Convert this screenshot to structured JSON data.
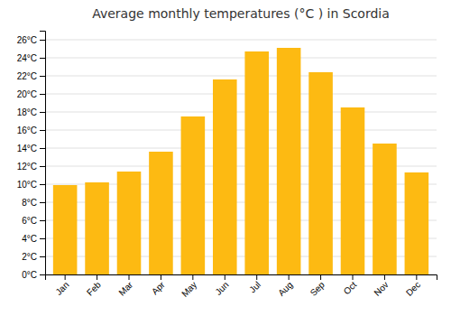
{
  "chart_data": {
    "type": "bar",
    "title": "Average monthly temperatures (°C ) in Scordia",
    "categories": [
      "Jan",
      "Feb",
      "Mar",
      "Apr",
      "May",
      "Jun",
      "Jul",
      "Aug",
      "Sep",
      "Oct",
      "Nov",
      "Dec"
    ],
    "values": [
      9.9,
      10.2,
      11.4,
      13.6,
      17.5,
      21.6,
      24.7,
      25.1,
      22.4,
      18.5,
      14.5,
      11.3
    ],
    "color": "#FDBA12",
    "ylim": [
      0,
      27
    ],
    "yticks": [
      {
        "value": 0,
        "label": "0°C"
      },
      {
        "value": 2,
        "label": "2°C"
      },
      {
        "value": 4,
        "label": "4°C"
      },
      {
        "value": 6,
        "label": "6°C"
      },
      {
        "value": 8,
        "label": "8°C"
      },
      {
        "value": 10,
        "label": "10°C"
      },
      {
        "value": 12,
        "label": "12°C"
      },
      {
        "value": 14,
        "label": "14°C"
      },
      {
        "value": 16,
        "label": "16°C"
      },
      {
        "value": 18,
        "label": "18°C"
      },
      {
        "value": 20,
        "label": "20°C"
      },
      {
        "value": 22,
        "label": "22°C"
      },
      {
        "value": 24,
        "label": "24°C"
      },
      {
        "value": 26,
        "label": "26°C"
      }
    ],
    "grid": true
  }
}
